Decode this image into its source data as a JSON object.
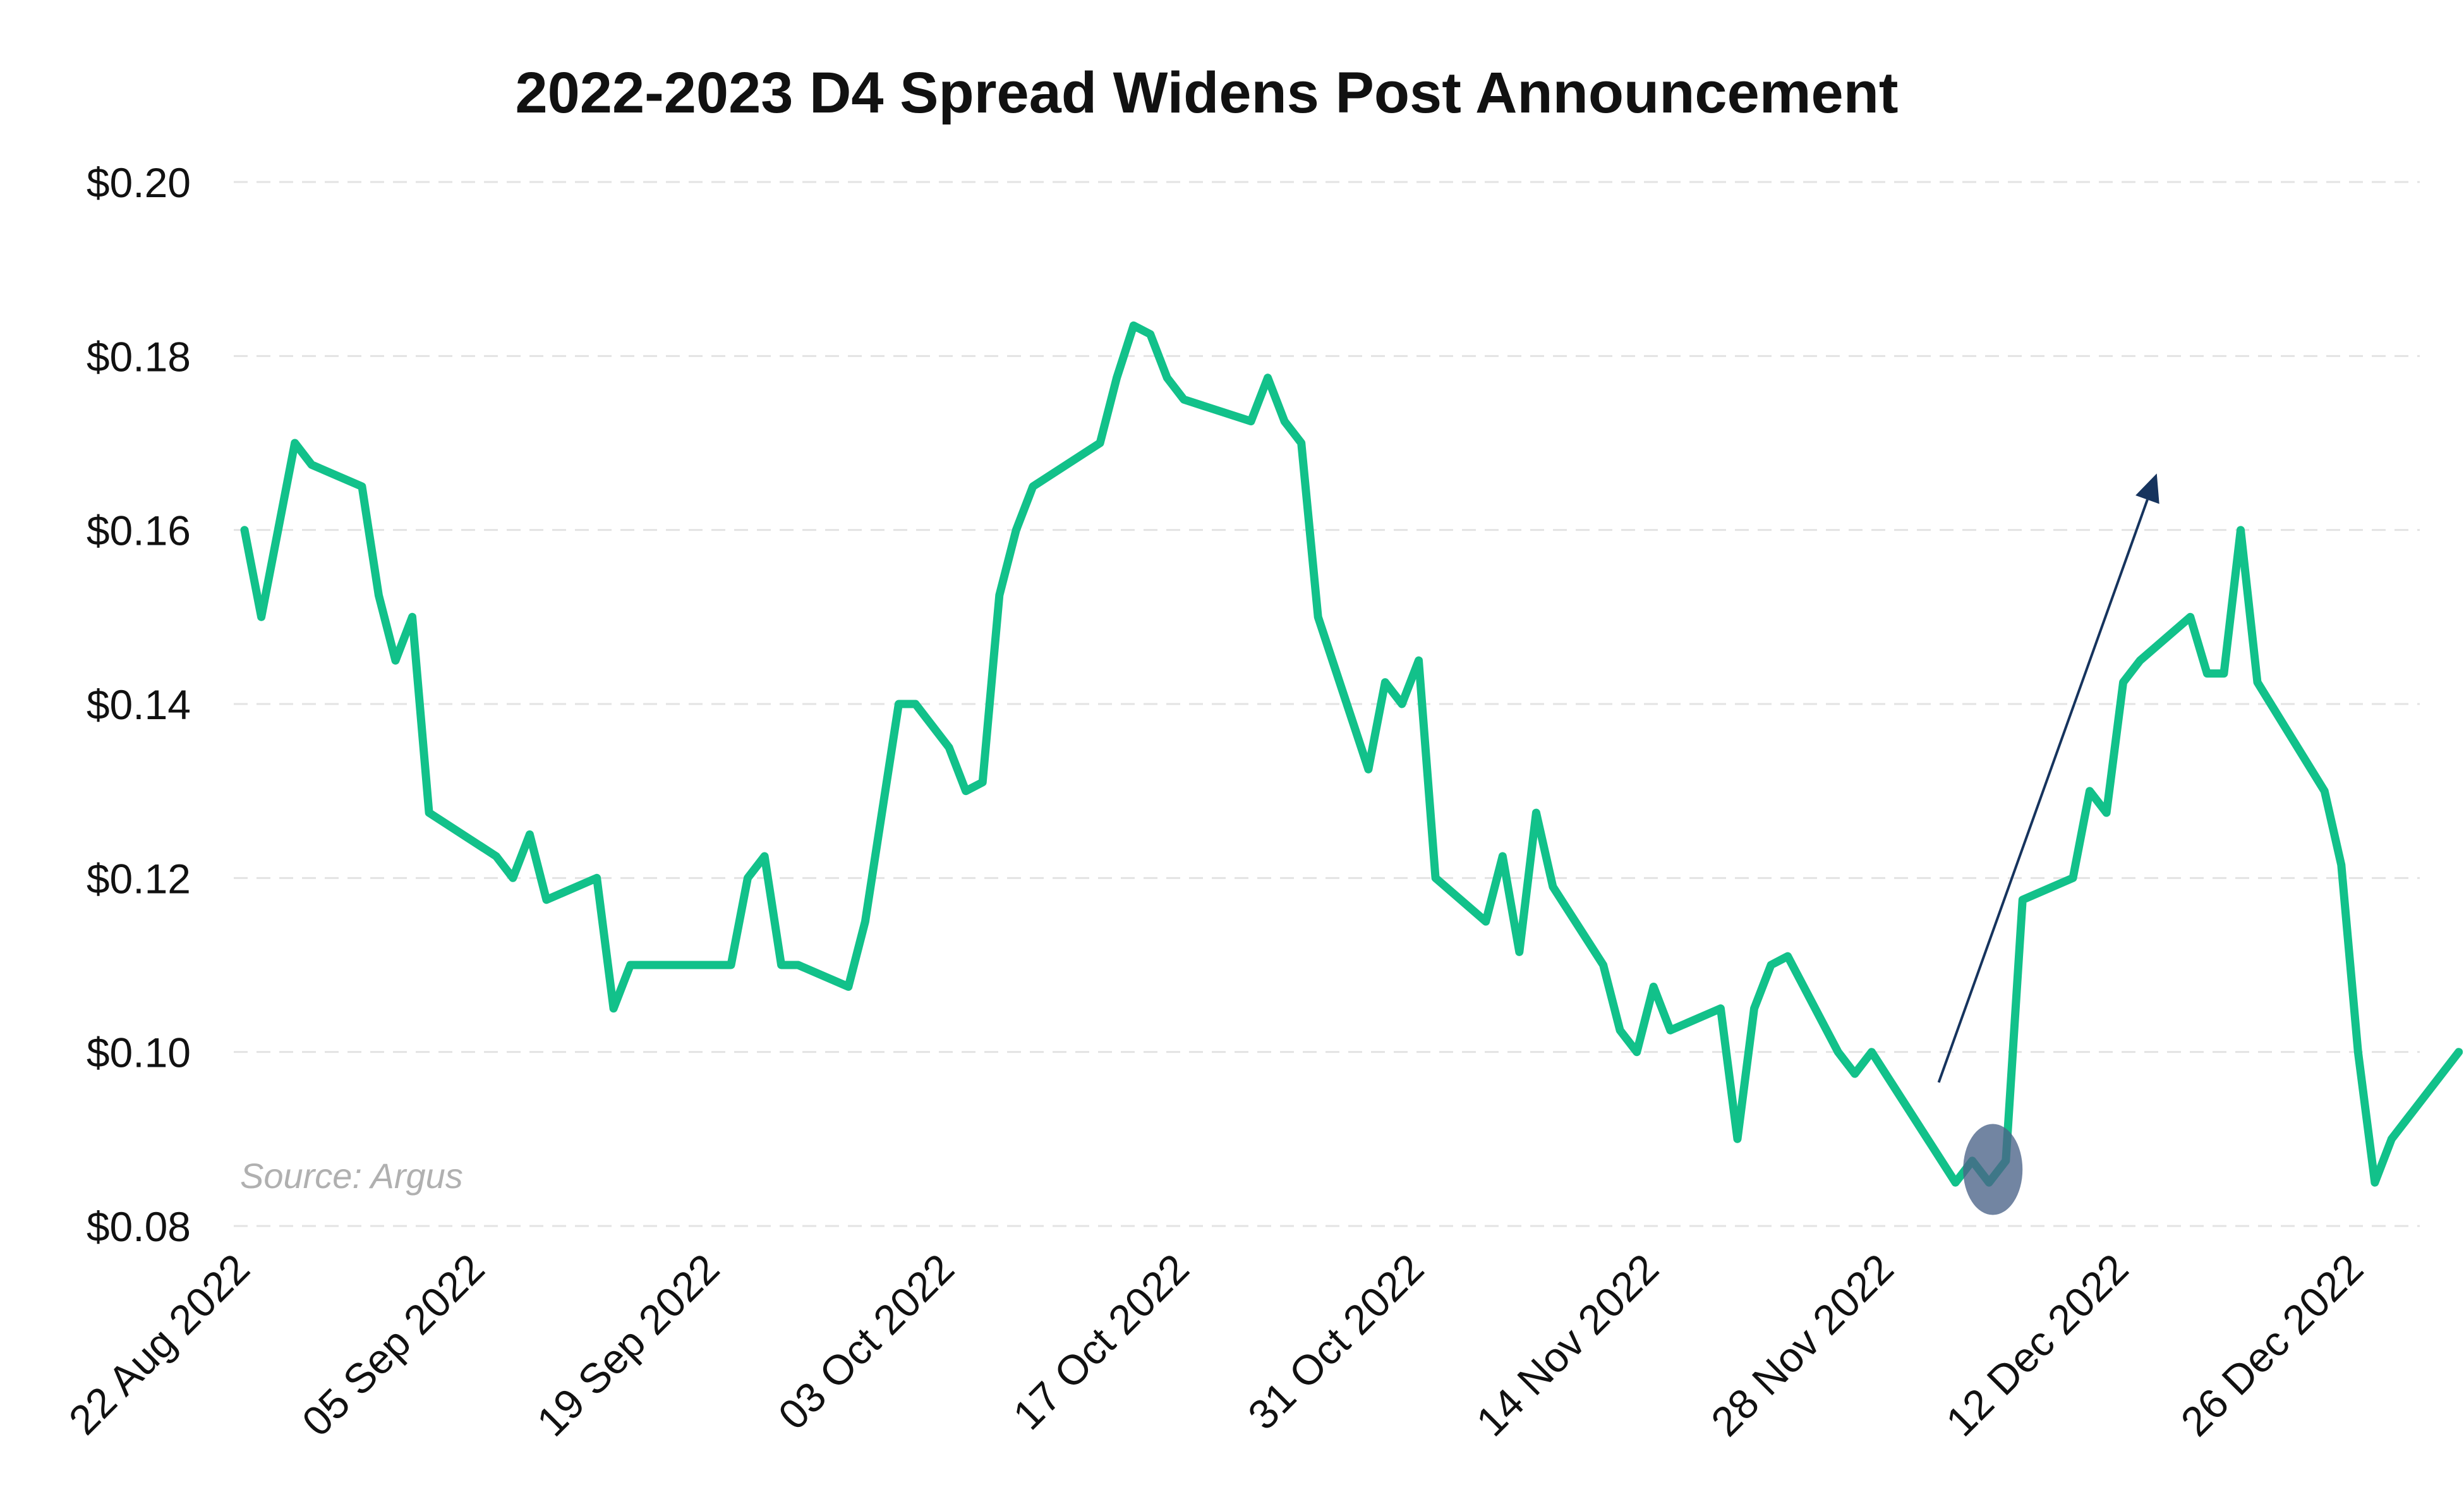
{
  "chart_data": {
    "type": "line",
    "title": "2022-2023 D4 Spread Widens Post Announcement",
    "source": "Source: Argus",
    "xlabel": "",
    "ylabel": "",
    "ylim": [
      0.08,
      0.2
    ],
    "y_ticks": [
      {
        "value": 0.2,
        "label": "$0.20"
      },
      {
        "value": 0.18,
        "label": "$0.18"
      },
      {
        "value": 0.16,
        "label": "$0.16"
      },
      {
        "value": 0.14,
        "label": "$0.14"
      },
      {
        "value": 0.12,
        "label": "$0.12"
      },
      {
        "value": 0.1,
        "label": "$0.10"
      },
      {
        "value": 0.08,
        "label": "$0.08"
      }
    ],
    "x_range": [
      "2022-08-22",
      "2022-12-29"
    ],
    "x_ticks": [
      {
        "date": "2022-08-22",
        "label": "22 Aug 2022"
      },
      {
        "date": "2022-09-05",
        "label": "05 Sep 2022"
      },
      {
        "date": "2022-09-19",
        "label": "19 Sep 2022"
      },
      {
        "date": "2022-10-03",
        "label": "03 Oct 2022"
      },
      {
        "date": "2022-10-17",
        "label": "17 Oct 2022"
      },
      {
        "date": "2022-10-31",
        "label": "31 Oct 2022"
      },
      {
        "date": "2022-11-14",
        "label": "14 Nov 2022"
      },
      {
        "date": "2022-11-28",
        "label": "28 Nov 2022"
      },
      {
        "date": "2022-12-12",
        "label": "12 Dec 2022"
      },
      {
        "date": "2022-12-26",
        "label": "26 Dec 2022"
      }
    ],
    "grid": true,
    "legend": "none",
    "series": [
      {
        "color": "#12c18a",
        "points": [
          [
            "2022-08-22",
            0.16
          ],
          [
            "2022-08-23",
            0.15
          ],
          [
            "2022-08-25",
            0.17
          ],
          [
            "2022-08-26",
            0.1675
          ],
          [
            "2022-08-29",
            0.165
          ],
          [
            "2022-08-30",
            0.1525
          ],
          [
            "2022-08-31",
            0.145
          ],
          [
            "2022-09-01",
            0.15
          ],
          [
            "2022-09-02",
            0.1275
          ],
          [
            "2022-09-06",
            0.1225
          ],
          [
            "2022-09-07",
            0.12
          ],
          [
            "2022-09-08",
            0.125
          ],
          [
            "2022-09-09",
            0.1175
          ],
          [
            "2022-09-12",
            0.12
          ],
          [
            "2022-09-13",
            0.105
          ],
          [
            "2022-09-14",
            0.11
          ],
          [
            "2022-09-20",
            0.11
          ],
          [
            "2022-09-21",
            0.12
          ],
          [
            "2022-09-22",
            0.1225
          ],
          [
            "2022-09-23",
            0.11
          ],
          [
            "2022-09-24",
            0.11
          ],
          [
            "2022-09-27",
            0.1075
          ],
          [
            "2022-09-28",
            0.115
          ],
          [
            "2022-09-29",
            0.1275
          ],
          [
            "2022-09-30",
            0.14
          ],
          [
            "2022-10-01",
            0.14
          ],
          [
            "2022-10-03",
            0.135
          ],
          [
            "2022-10-04",
            0.13
          ],
          [
            "2022-10-05",
            0.131
          ],
          [
            "2022-10-06",
            0.1525
          ],
          [
            "2022-10-07",
            0.16
          ],
          [
            "2022-10-08",
            0.165
          ],
          [
            "2022-10-12",
            0.17
          ],
          [
            "2022-10-13",
            0.1775
          ],
          [
            "2022-10-14",
            0.1835
          ],
          [
            "2022-10-15",
            0.1825
          ],
          [
            "2022-10-16",
            0.1775
          ],
          [
            "2022-10-17",
            0.175
          ],
          [
            "2022-10-21",
            0.1725
          ],
          [
            "2022-10-22",
            0.1775
          ],
          [
            "2022-10-23",
            0.1725
          ],
          [
            "2022-10-24",
            0.17
          ],
          [
            "2022-10-25",
            0.15
          ],
          [
            "2022-10-28",
            0.1325
          ],
          [
            "2022-10-29",
            0.1425
          ],
          [
            "2022-10-30",
            0.14
          ],
          [
            "2022-10-31",
            0.145
          ],
          [
            "2022-11-01",
            0.12
          ],
          [
            "2022-11-04",
            0.115
          ],
          [
            "2022-11-05",
            0.1225
          ],
          [
            "2022-11-06",
            0.1115
          ],
          [
            "2022-11-07",
            0.1275
          ],
          [
            "2022-11-08",
            0.119
          ],
          [
            "2022-11-11",
            0.11
          ],
          [
            "2022-11-12",
            0.1025
          ],
          [
            "2022-11-13",
            0.1
          ],
          [
            "2022-11-14",
            0.1075
          ],
          [
            "2022-11-15",
            0.1025
          ],
          [
            "2022-11-18",
            0.105
          ],
          [
            "2022-11-19",
            0.09
          ],
          [
            "2022-11-20",
            0.105
          ],
          [
            "2022-11-21",
            0.11
          ],
          [
            "2022-11-22",
            0.111
          ],
          [
            "2022-11-25",
            0.1
          ],
          [
            "2022-11-26",
            0.0975
          ],
          [
            "2022-11-27",
            0.1
          ],
          [
            "2022-12-02",
            0.085
          ],
          [
            "2022-12-03",
            0.0875
          ],
          [
            "2022-12-04",
            0.085
          ],
          [
            "2022-12-05",
            0.0875
          ],
          [
            "2022-12-06",
            0.1175
          ],
          [
            "2022-12-09",
            0.12
          ],
          [
            "2022-12-10",
            0.13
          ],
          [
            "2022-12-11",
            0.1275
          ],
          [
            "2022-12-12",
            0.1425
          ],
          [
            "2022-12-13",
            0.145
          ],
          [
            "2022-12-16",
            0.15
          ],
          [
            "2022-12-17",
            0.1435
          ],
          [
            "2022-12-18",
            0.1435
          ],
          [
            "2022-12-19",
            0.16
          ],
          [
            "2022-12-20",
            0.1425
          ],
          [
            "2022-12-24",
            0.13
          ],
          [
            "2022-12-25",
            0.1215
          ],
          [
            "2022-12-26",
            0.1
          ],
          [
            "2022-12-27",
            0.085
          ],
          [
            "2022-12-28",
            0.09
          ],
          [
            "2023-01-01",
            0.1
          ]
        ]
      }
    ],
    "annotations": [
      {
        "type": "arrow",
        "color": "#16345e",
        "from": [
          "2022-12-01",
          0.0965
        ],
        "to": [
          "2022-12-14",
          0.1665
        ]
      },
      {
        "type": "ellipse-marker",
        "color": "#4a6388",
        "at": [
          "2022-12-04",
          0.0865
        ]
      }
    ]
  }
}
